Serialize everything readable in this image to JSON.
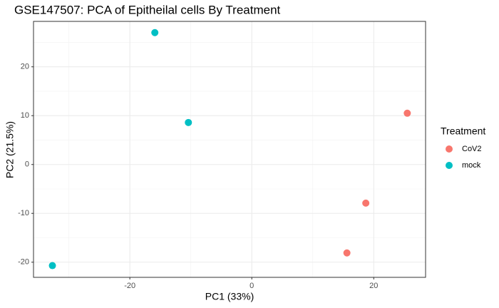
{
  "chart_data": {
    "type": "scatter",
    "title": "GSE147507: PCA of Epitheilal cells By Treatment",
    "x_label": "PC1 (33%)",
    "y_label": "PC2 (21.5%)",
    "legend_title": "Treatment",
    "legend_position": "right",
    "series": [
      {
        "name": "CoV2",
        "color": "#F8766D",
        "x": [
          25.5,
          18.7,
          15.6
        ],
        "values": [
          10.5,
          -7.9,
          -18.1
        ]
      },
      {
        "name": "mock",
        "color": "#00BFC4",
        "x": [
          -15.9,
          -10.4,
          -32.7
        ],
        "values": [
          27.0,
          8.6,
          -20.7
        ]
      }
    ],
    "xlim": [
      -35.8,
      28.5
    ],
    "ylim": [
      -23.1,
      29.3
    ],
    "xticks": [
      -20,
      0,
      20
    ],
    "yticks": [
      -20,
      -10,
      0,
      10,
      20
    ],
    "xminor": [
      -30,
      -10,
      10
    ],
    "yminor": [
      -15,
      -5,
      5,
      15,
      25
    ],
    "grid": true
  }
}
